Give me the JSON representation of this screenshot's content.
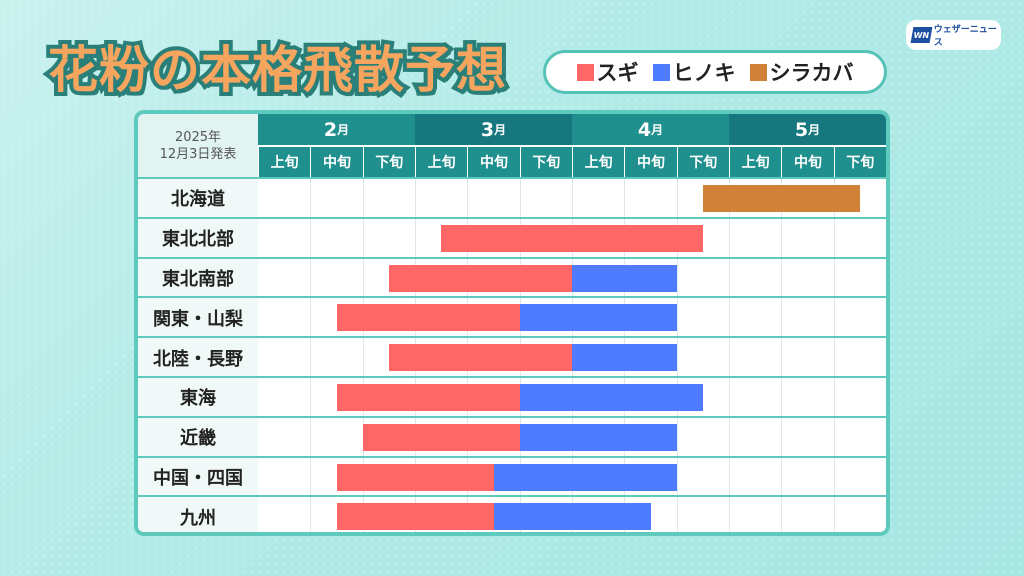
{
  "title": "花粉の本格飛散予想",
  "logo": {
    "mark": "WN",
    "text": "ウェザーニュース"
  },
  "legend": [
    {
      "label": "スギ",
      "color": "#ff6666"
    },
    {
      "label": "ヒノキ",
      "color": "#4f7bff"
    },
    {
      "label": "シラカバ",
      "color": "#d08238"
    }
  ],
  "issued": {
    "year": "2025年",
    "date": "12月3日発表"
  },
  "chart_data": {
    "type": "gantt",
    "title": "花粉の本格飛散予想",
    "months": [
      {
        "label": "2",
        "unit": "月",
        "color": "#20908e"
      },
      {
        "label": "3",
        "unit": "月",
        "color": "#16787e"
      },
      {
        "label": "4",
        "unit": "月",
        "color": "#20908e"
      },
      {
        "label": "5",
        "unit": "月",
        "color": "#16787e"
      }
    ],
    "periods": [
      "上旬",
      "中旬",
      "下旬",
      "上旬",
      "中旬",
      "下旬",
      "上旬",
      "中旬",
      "下旬",
      "上旬",
      "中旬",
      "下旬"
    ],
    "x_unit": "旬 index from 2月上旬 start (0) to 5月下旬 end (12)",
    "regions": [
      {
        "name": "北海道",
        "segments": [
          {
            "series": "シラカバ",
            "start": 8.5,
            "end": 11.5
          }
        ]
      },
      {
        "name": "東北北部",
        "segments": [
          {
            "series": "スギ",
            "start": 3.5,
            "end": 8.5
          }
        ]
      },
      {
        "name": "東北南部",
        "segments": [
          {
            "series": "スギ",
            "start": 2.5,
            "end": 6
          },
          {
            "series": "ヒノキ",
            "start": 6,
            "end": 8
          }
        ]
      },
      {
        "name": "関東・山梨",
        "segments": [
          {
            "series": "スギ",
            "start": 1.5,
            "end": 5
          },
          {
            "series": "ヒノキ",
            "start": 5,
            "end": 8
          }
        ]
      },
      {
        "name": "北陸・長野",
        "segments": [
          {
            "series": "スギ",
            "start": 2.5,
            "end": 6
          },
          {
            "series": "ヒノキ",
            "start": 6,
            "end": 8
          }
        ]
      },
      {
        "name": "東海",
        "segments": [
          {
            "series": "スギ",
            "start": 1.5,
            "end": 5
          },
          {
            "series": "ヒノキ",
            "start": 5,
            "end": 8.5
          }
        ]
      },
      {
        "name": "近畿",
        "segments": [
          {
            "series": "スギ",
            "start": 2,
            "end": 5
          },
          {
            "series": "ヒノキ",
            "start": 5,
            "end": 8
          }
        ]
      },
      {
        "name": "中国・四国",
        "segments": [
          {
            "series": "スギ",
            "start": 1.5,
            "end": 4.5
          },
          {
            "series": "ヒノキ",
            "start": 4.5,
            "end": 8
          }
        ]
      },
      {
        "name": "九州",
        "segments": [
          {
            "series": "スギ",
            "start": 1.5,
            "end": 4.5
          },
          {
            "series": "ヒノキ",
            "start": 4.5,
            "end": 7.5
          }
        ]
      }
    ]
  }
}
